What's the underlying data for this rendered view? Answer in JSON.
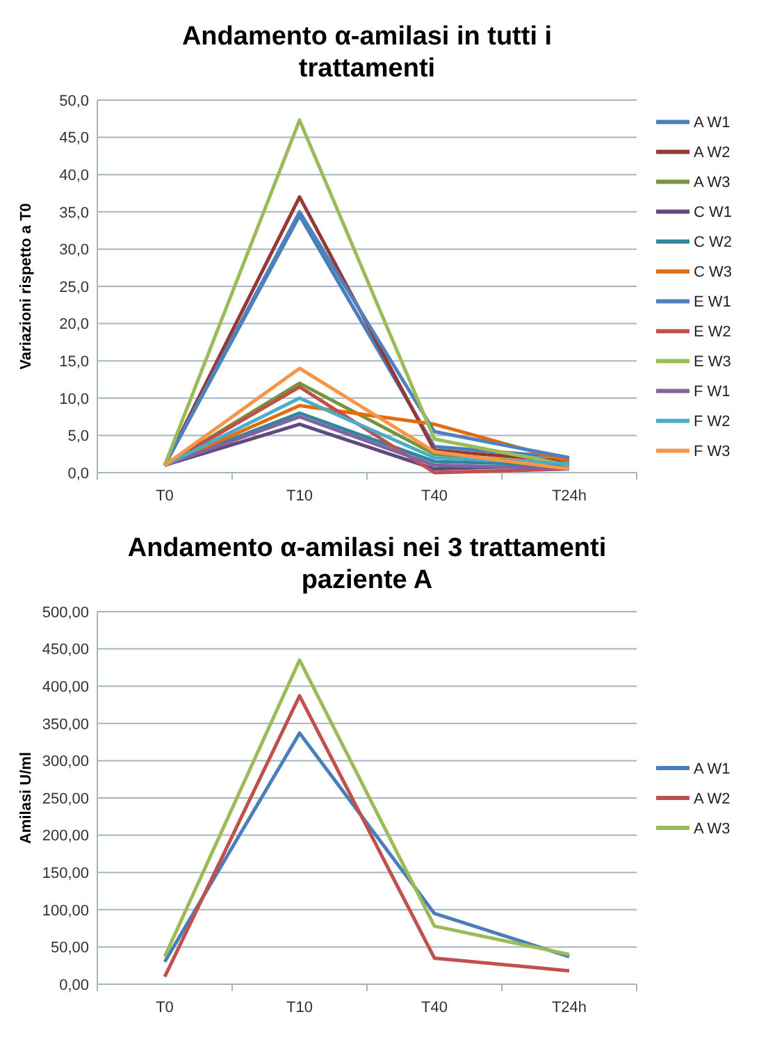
{
  "chart_data": [
    {
      "type": "line",
      "title": "Andamento α-amilasi in tutti i trattamenti",
      "ylabel": "Variazioni rispetto a T0",
      "categories": [
        "T0",
        "T10",
        "T40",
        "T24h"
      ],
      "ylim": [
        0,
        50
      ],
      "yticks": [
        {
          "value": 0,
          "label": "0,0"
        },
        {
          "value": 5,
          "label": "5,0"
        },
        {
          "value": 10,
          "label": "10,0"
        },
        {
          "value": 15,
          "label": "15,0"
        },
        {
          "value": 20,
          "label": "20,0"
        },
        {
          "value": 25,
          "label": "25,0"
        },
        {
          "value": 30,
          "label": "30,0"
        },
        {
          "value": 35,
          "label": "35,0"
        },
        {
          "value": 40,
          "label": "40,0"
        },
        {
          "value": 45,
          "label": "45,0"
        },
        {
          "value": 50,
          "label": "50,0"
        }
      ],
      "grid": "y",
      "legend": "right",
      "marker": "none",
      "line_style": "solid",
      "series": [
        {
          "name": "A W1",
          "color": "#4a7ebb",
          "values": [
            1,
            34.5,
            3.5,
            2
          ]
        },
        {
          "name": "A W2",
          "color": "#953735",
          "values": [
            1,
            37,
            3,
            1.5
          ]
        },
        {
          "name": "A W3",
          "color": "#77933c",
          "values": [
            1,
            12,
            2.5,
            1
          ]
        },
        {
          "name": "C W1",
          "color": "#604a7b",
          "values": [
            1,
            6.5,
            0.5,
            1
          ]
        },
        {
          "name": "C W2",
          "color": "#31859c",
          "values": [
            1,
            8,
            1.5,
            1
          ]
        },
        {
          "name": "C W3",
          "color": "#e46c0a",
          "values": [
            1,
            9,
            6.5,
            1.5
          ]
        },
        {
          "name": "E W1",
          "color": "#4f81bd",
          "values": [
            1,
            35,
            5.5,
            2
          ]
        },
        {
          "name": "E W2",
          "color": "#c0504d",
          "values": [
            1,
            11.5,
            0,
            0.5
          ]
        },
        {
          "name": "E W3",
          "color": "#9bbb59",
          "values": [
            1,
            47.3,
            4.5,
            1
          ]
        },
        {
          "name": "F W1",
          "color": "#8064a2",
          "values": [
            1,
            7.5,
            1,
            0.5
          ]
        },
        {
          "name": "F W2",
          "color": "#4bacc6",
          "values": [
            1,
            10,
            2,
            1.2
          ]
        },
        {
          "name": "F W3",
          "color": "#f79646",
          "values": [
            1,
            14,
            2.8,
            0.5
          ]
        }
      ]
    },
    {
      "type": "line",
      "title": "Andamento α-amilasi nei 3 trattamenti paziente A",
      "ylabel": "Amilasi U/ml",
      "categories": [
        "T0",
        "T10",
        "T40",
        "T24h"
      ],
      "ylim": [
        0,
        500
      ],
      "yticks": [
        {
          "value": 0,
          "label": "0,00"
        },
        {
          "value": 50,
          "label": "50,00"
        },
        {
          "value": 100,
          "label": "100,00"
        },
        {
          "value": 150,
          "label": "150,00"
        },
        {
          "value": 200,
          "label": "200,00"
        },
        {
          "value": 250,
          "label": "250,00"
        },
        {
          "value": 300,
          "label": "300,00"
        },
        {
          "value": 350,
          "label": "350,00"
        },
        {
          "value": 400,
          "label": "400,00"
        },
        {
          "value": 450,
          "label": "450,00"
        },
        {
          "value": 500,
          "label": "500,00"
        }
      ],
      "grid": "y",
      "legend": "right",
      "marker": "none",
      "line_style": "solid",
      "series": [
        {
          "name": "A W1",
          "color": "#4a7ebb",
          "values": [
            30,
            337,
            95,
            37
          ]
        },
        {
          "name": "A W2",
          "color": "#c0504d",
          "values": [
            10,
            387,
            35,
            18
          ]
        },
        {
          "name": "A W3",
          "color": "#9bbb59",
          "values": [
            37,
            435,
            78,
            40
          ]
        }
      ]
    }
  ]
}
